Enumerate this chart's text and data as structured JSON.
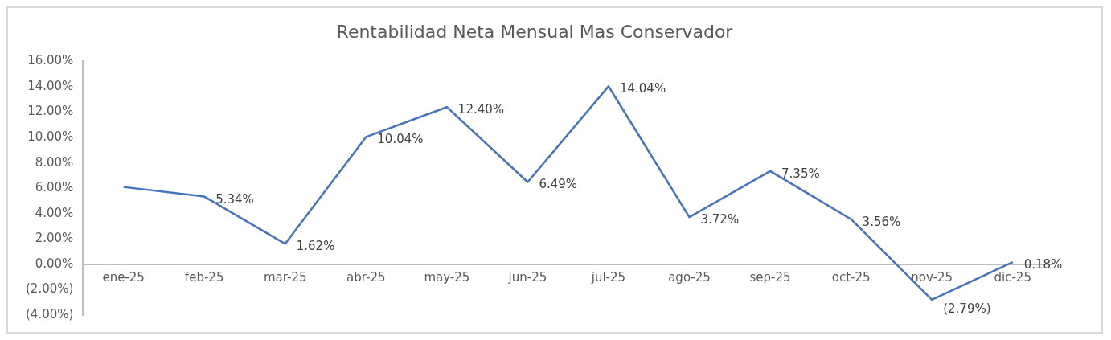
{
  "chart_data": {
    "type": "line",
    "title": "Rentabilidad Neta Mensual Mas Conservador",
    "categories": [
      "ene-25",
      "feb-25",
      "mar-25",
      "abr-25",
      "may-25",
      "jun-25",
      "jul-25",
      "ago-25",
      "sep-25",
      "oct-25",
      "nov-25",
      "dic-25"
    ],
    "series": [
      {
        "color": "#4472c4",
        "values": [
          6.1,
          5.34,
          1.62,
          10.04,
          12.4,
          6.49,
          14.04,
          3.72,
          7.35,
          3.56,
          -2.79,
          0.18
        ],
        "value_labels": [
          null,
          "5.34%",
          "1.62%",
          "10.04%",
          "12.40%",
          "6.49%",
          "14.04%",
          "3.72%",
          "7.35%",
          "3.56%",
          "(2.79%)",
          "0.18%"
        ]
      }
    ],
    "ylim": [
      -4,
      16
    ],
    "yticks": [
      {
        "value": -4,
        "label": "(4.00%)"
      },
      {
        "value": -2,
        "label": "(2.00%)"
      },
      {
        "value": 0,
        "label": "0.00%"
      },
      {
        "value": 2,
        "label": "2.00%"
      },
      {
        "value": 4,
        "label": "4.00%"
      },
      {
        "value": 6,
        "label": "6.00%"
      },
      {
        "value": 8,
        "label": "8.00%"
      },
      {
        "value": 10,
        "label": "10.00%"
      },
      {
        "value": 12,
        "label": "12.00%"
      },
      {
        "value": 14,
        "label": "14.00%"
      },
      {
        "value": 16,
        "label": "16.00%"
      }
    ],
    "grid": false,
    "legend": false,
    "marker": "none",
    "line_style": "solid"
  }
}
